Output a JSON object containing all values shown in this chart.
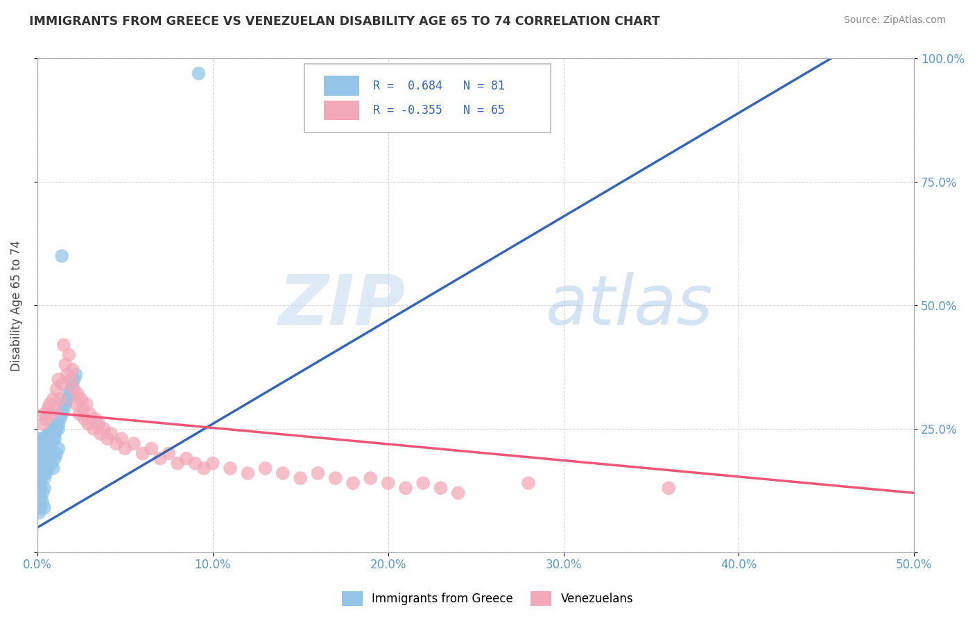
{
  "title": "IMMIGRANTS FROM GREECE VS VENEZUELAN DISABILITY AGE 65 TO 74 CORRELATION CHART",
  "source": "Source: ZipAtlas.com",
  "ylabel_label": "Disability Age 65 to 74",
  "xmin": 0.0,
  "xmax": 0.5,
  "ymin": 0.0,
  "ymax": 1.0,
  "legend_label1": "Immigrants from Greece",
  "legend_label2": "Venezuelans",
  "blue_color": "#92C5E8",
  "pink_color": "#F2A8B8",
  "blue_line_color": "#3366BB",
  "pink_line_color": "#EE5577",
  "blue_scatter": [
    [
      0.001,
      0.21
    ],
    [
      0.001,
      0.19
    ],
    [
      0.001,
      0.22
    ],
    [
      0.001,
      0.18
    ],
    [
      0.002,
      0.2
    ],
    [
      0.002,
      0.23
    ],
    [
      0.002,
      0.19
    ],
    [
      0.002,
      0.21
    ],
    [
      0.002,
      0.22
    ],
    [
      0.003,
      0.21
    ],
    [
      0.003,
      0.2
    ],
    [
      0.003,
      0.22
    ],
    [
      0.003,
      0.19
    ],
    [
      0.003,
      0.23
    ],
    [
      0.004,
      0.21
    ],
    [
      0.004,
      0.22
    ],
    [
      0.004,
      0.2
    ],
    [
      0.004,
      0.23
    ],
    [
      0.005,
      0.22
    ],
    [
      0.005,
      0.21
    ],
    [
      0.005,
      0.23
    ],
    [
      0.005,
      0.2
    ],
    [
      0.006,
      0.22
    ],
    [
      0.006,
      0.23
    ],
    [
      0.006,
      0.21
    ],
    [
      0.006,
      0.24
    ],
    [
      0.007,
      0.23
    ],
    [
      0.007,
      0.22
    ],
    [
      0.007,
      0.24
    ],
    [
      0.007,
      0.21
    ],
    [
      0.008,
      0.23
    ],
    [
      0.008,
      0.24
    ],
    [
      0.008,
      0.22
    ],
    [
      0.009,
      0.24
    ],
    [
      0.009,
      0.23
    ],
    [
      0.009,
      0.25
    ],
    [
      0.01,
      0.24
    ],
    [
      0.01,
      0.25
    ],
    [
      0.01,
      0.23
    ],
    [
      0.011,
      0.25
    ],
    [
      0.011,
      0.26
    ],
    [
      0.012,
      0.26
    ],
    [
      0.012,
      0.25
    ],
    [
      0.013,
      0.27
    ],
    [
      0.014,
      0.28
    ],
    [
      0.015,
      0.29
    ],
    [
      0.016,
      0.3
    ],
    [
      0.017,
      0.31
    ],
    [
      0.018,
      0.32
    ],
    [
      0.019,
      0.33
    ],
    [
      0.02,
      0.34
    ],
    [
      0.021,
      0.35
    ],
    [
      0.022,
      0.36
    ],
    [
      0.001,
      0.16
    ],
    [
      0.001,
      0.14
    ],
    [
      0.002,
      0.17
    ],
    [
      0.002,
      0.15
    ],
    [
      0.003,
      0.16
    ],
    [
      0.003,
      0.18
    ],
    [
      0.004,
      0.17
    ],
    [
      0.004,
      0.15
    ],
    [
      0.005,
      0.18
    ],
    [
      0.005,
      0.16
    ],
    [
      0.006,
      0.17
    ],
    [
      0.007,
      0.19
    ],
    [
      0.008,
      0.18
    ],
    [
      0.009,
      0.17
    ],
    [
      0.01,
      0.19
    ],
    [
      0.011,
      0.2
    ],
    [
      0.012,
      0.21
    ],
    [
      0.001,
      0.12
    ],
    [
      0.002,
      0.11
    ],
    [
      0.002,
      0.13
    ],
    [
      0.003,
      0.12
    ],
    [
      0.004,
      0.13
    ],
    [
      0.001,
      0.08
    ],
    [
      0.002,
      0.09
    ],
    [
      0.003,
      0.1
    ],
    [
      0.004,
      0.09
    ],
    [
      0.014,
      0.6
    ],
    [
      0.092,
      0.97
    ]
  ],
  "pink_scatter": [
    [
      0.003,
      0.26
    ],
    [
      0.004,
      0.28
    ],
    [
      0.005,
      0.27
    ],
    [
      0.006,
      0.29
    ],
    [
      0.007,
      0.3
    ],
    [
      0.008,
      0.28
    ],
    [
      0.009,
      0.31
    ],
    [
      0.01,
      0.29
    ],
    [
      0.011,
      0.33
    ],
    [
      0.012,
      0.35
    ],
    [
      0.013,
      0.31
    ],
    [
      0.014,
      0.34
    ],
    [
      0.015,
      0.42
    ],
    [
      0.016,
      0.38
    ],
    [
      0.017,
      0.36
    ],
    [
      0.018,
      0.4
    ],
    [
      0.019,
      0.35
    ],
    [
      0.02,
      0.37
    ],
    [
      0.021,
      0.33
    ],
    [
      0.022,
      0.3
    ],
    [
      0.023,
      0.32
    ],
    [
      0.024,
      0.28
    ],
    [
      0.025,
      0.31
    ],
    [
      0.026,
      0.29
    ],
    [
      0.027,
      0.27
    ],
    [
      0.028,
      0.3
    ],
    [
      0.029,
      0.26
    ],
    [
      0.03,
      0.28
    ],
    [
      0.032,
      0.25
    ],
    [
      0.033,
      0.27
    ],
    [
      0.035,
      0.26
    ],
    [
      0.036,
      0.24
    ],
    [
      0.038,
      0.25
    ],
    [
      0.04,
      0.23
    ],
    [
      0.042,
      0.24
    ],
    [
      0.045,
      0.22
    ],
    [
      0.048,
      0.23
    ],
    [
      0.05,
      0.21
    ],
    [
      0.055,
      0.22
    ],
    [
      0.06,
      0.2
    ],
    [
      0.065,
      0.21
    ],
    [
      0.07,
      0.19
    ],
    [
      0.075,
      0.2
    ],
    [
      0.08,
      0.18
    ],
    [
      0.085,
      0.19
    ],
    [
      0.09,
      0.18
    ],
    [
      0.095,
      0.17
    ],
    [
      0.1,
      0.18
    ],
    [
      0.11,
      0.17
    ],
    [
      0.12,
      0.16
    ],
    [
      0.13,
      0.17
    ],
    [
      0.14,
      0.16
    ],
    [
      0.15,
      0.15
    ],
    [
      0.16,
      0.16
    ],
    [
      0.17,
      0.15
    ],
    [
      0.18,
      0.14
    ],
    [
      0.19,
      0.15
    ],
    [
      0.2,
      0.14
    ],
    [
      0.21,
      0.13
    ],
    [
      0.22,
      0.14
    ],
    [
      0.23,
      0.13
    ],
    [
      0.24,
      0.12
    ],
    [
      0.28,
      0.14
    ],
    [
      0.36,
      0.13
    ]
  ],
  "blue_line_x": [
    0.0,
    0.5
  ],
  "blue_line_y": [
    0.05,
    1.1
  ],
  "pink_line_x": [
    0.0,
    0.5
  ],
  "pink_line_y": [
    0.285,
    0.12
  ],
  "watermark_zip": "ZIP",
  "watermark_atlas": "atlas",
  "background_color": "#ffffff",
  "grid_color": "#cccccc",
  "tick_color": "#5599cc",
  "axis_color": "#aaaaaa"
}
